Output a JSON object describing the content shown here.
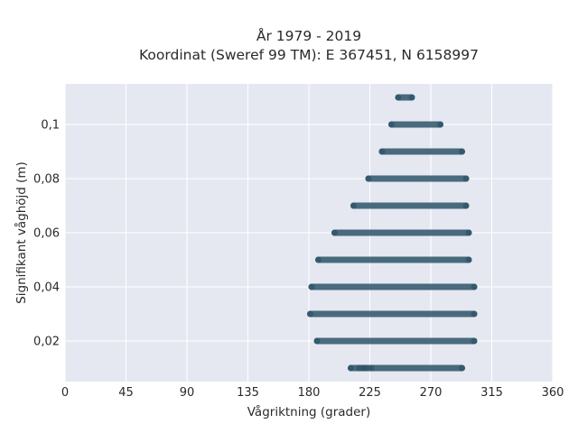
{
  "chart_data": {
    "type": "scatter",
    "title": "År 1979 - 2019",
    "subtitle": "Koordinat (Sweref 99 TM): E 367451, N 6158997",
    "xlabel": "Vågriktning (grader)",
    "ylabel": "Signifikant våghöjd (m)",
    "xlim": [
      0,
      360
    ],
    "ylim": [
      0.005,
      0.115
    ],
    "xticks": [
      0,
      45,
      90,
      135,
      180,
      225,
      270,
      315,
      360
    ],
    "xtick_labels": [
      "0",
      "45",
      "90",
      "135",
      "180",
      "225",
      "270",
      "315",
      "360"
    ],
    "yticks": [
      0.02,
      0.04,
      0.06,
      0.08,
      0.1
    ],
    "ytick_labels": [
      "0,02",
      "0,04",
      "0,06",
      "0,08",
      "0,1"
    ],
    "grid": true,
    "color": "#2e5468",
    "background": "#e5e8f1",
    "rows": [
      {
        "y": 0.11,
        "x_min": 246,
        "x_max": 256
      },
      {
        "y": 0.1,
        "x_min": 241,
        "x_max": 277
      },
      {
        "y": 0.09,
        "x_min": 234,
        "x_max": 293
      },
      {
        "y": 0.08,
        "x_min": 224,
        "x_max": 296
      },
      {
        "y": 0.07,
        "x_min": 213,
        "x_max": 296
      },
      {
        "y": 0.06,
        "x_min": 199,
        "x_max": 298
      },
      {
        "y": 0.05,
        "x_min": 187,
        "x_max": 298
      },
      {
        "y": 0.04,
        "x_min": 182,
        "x_max": 302
      },
      {
        "y": 0.03,
        "x_min": 181,
        "x_max": 302
      },
      {
        "y": 0.02,
        "x_min": 186,
        "x_max": 302
      },
      {
        "y": 0.01,
        "x_min": 211,
        "x_max": 293,
        "sparse_points": [
          217,
          220,
          222,
          226
        ]
      }
    ]
  }
}
